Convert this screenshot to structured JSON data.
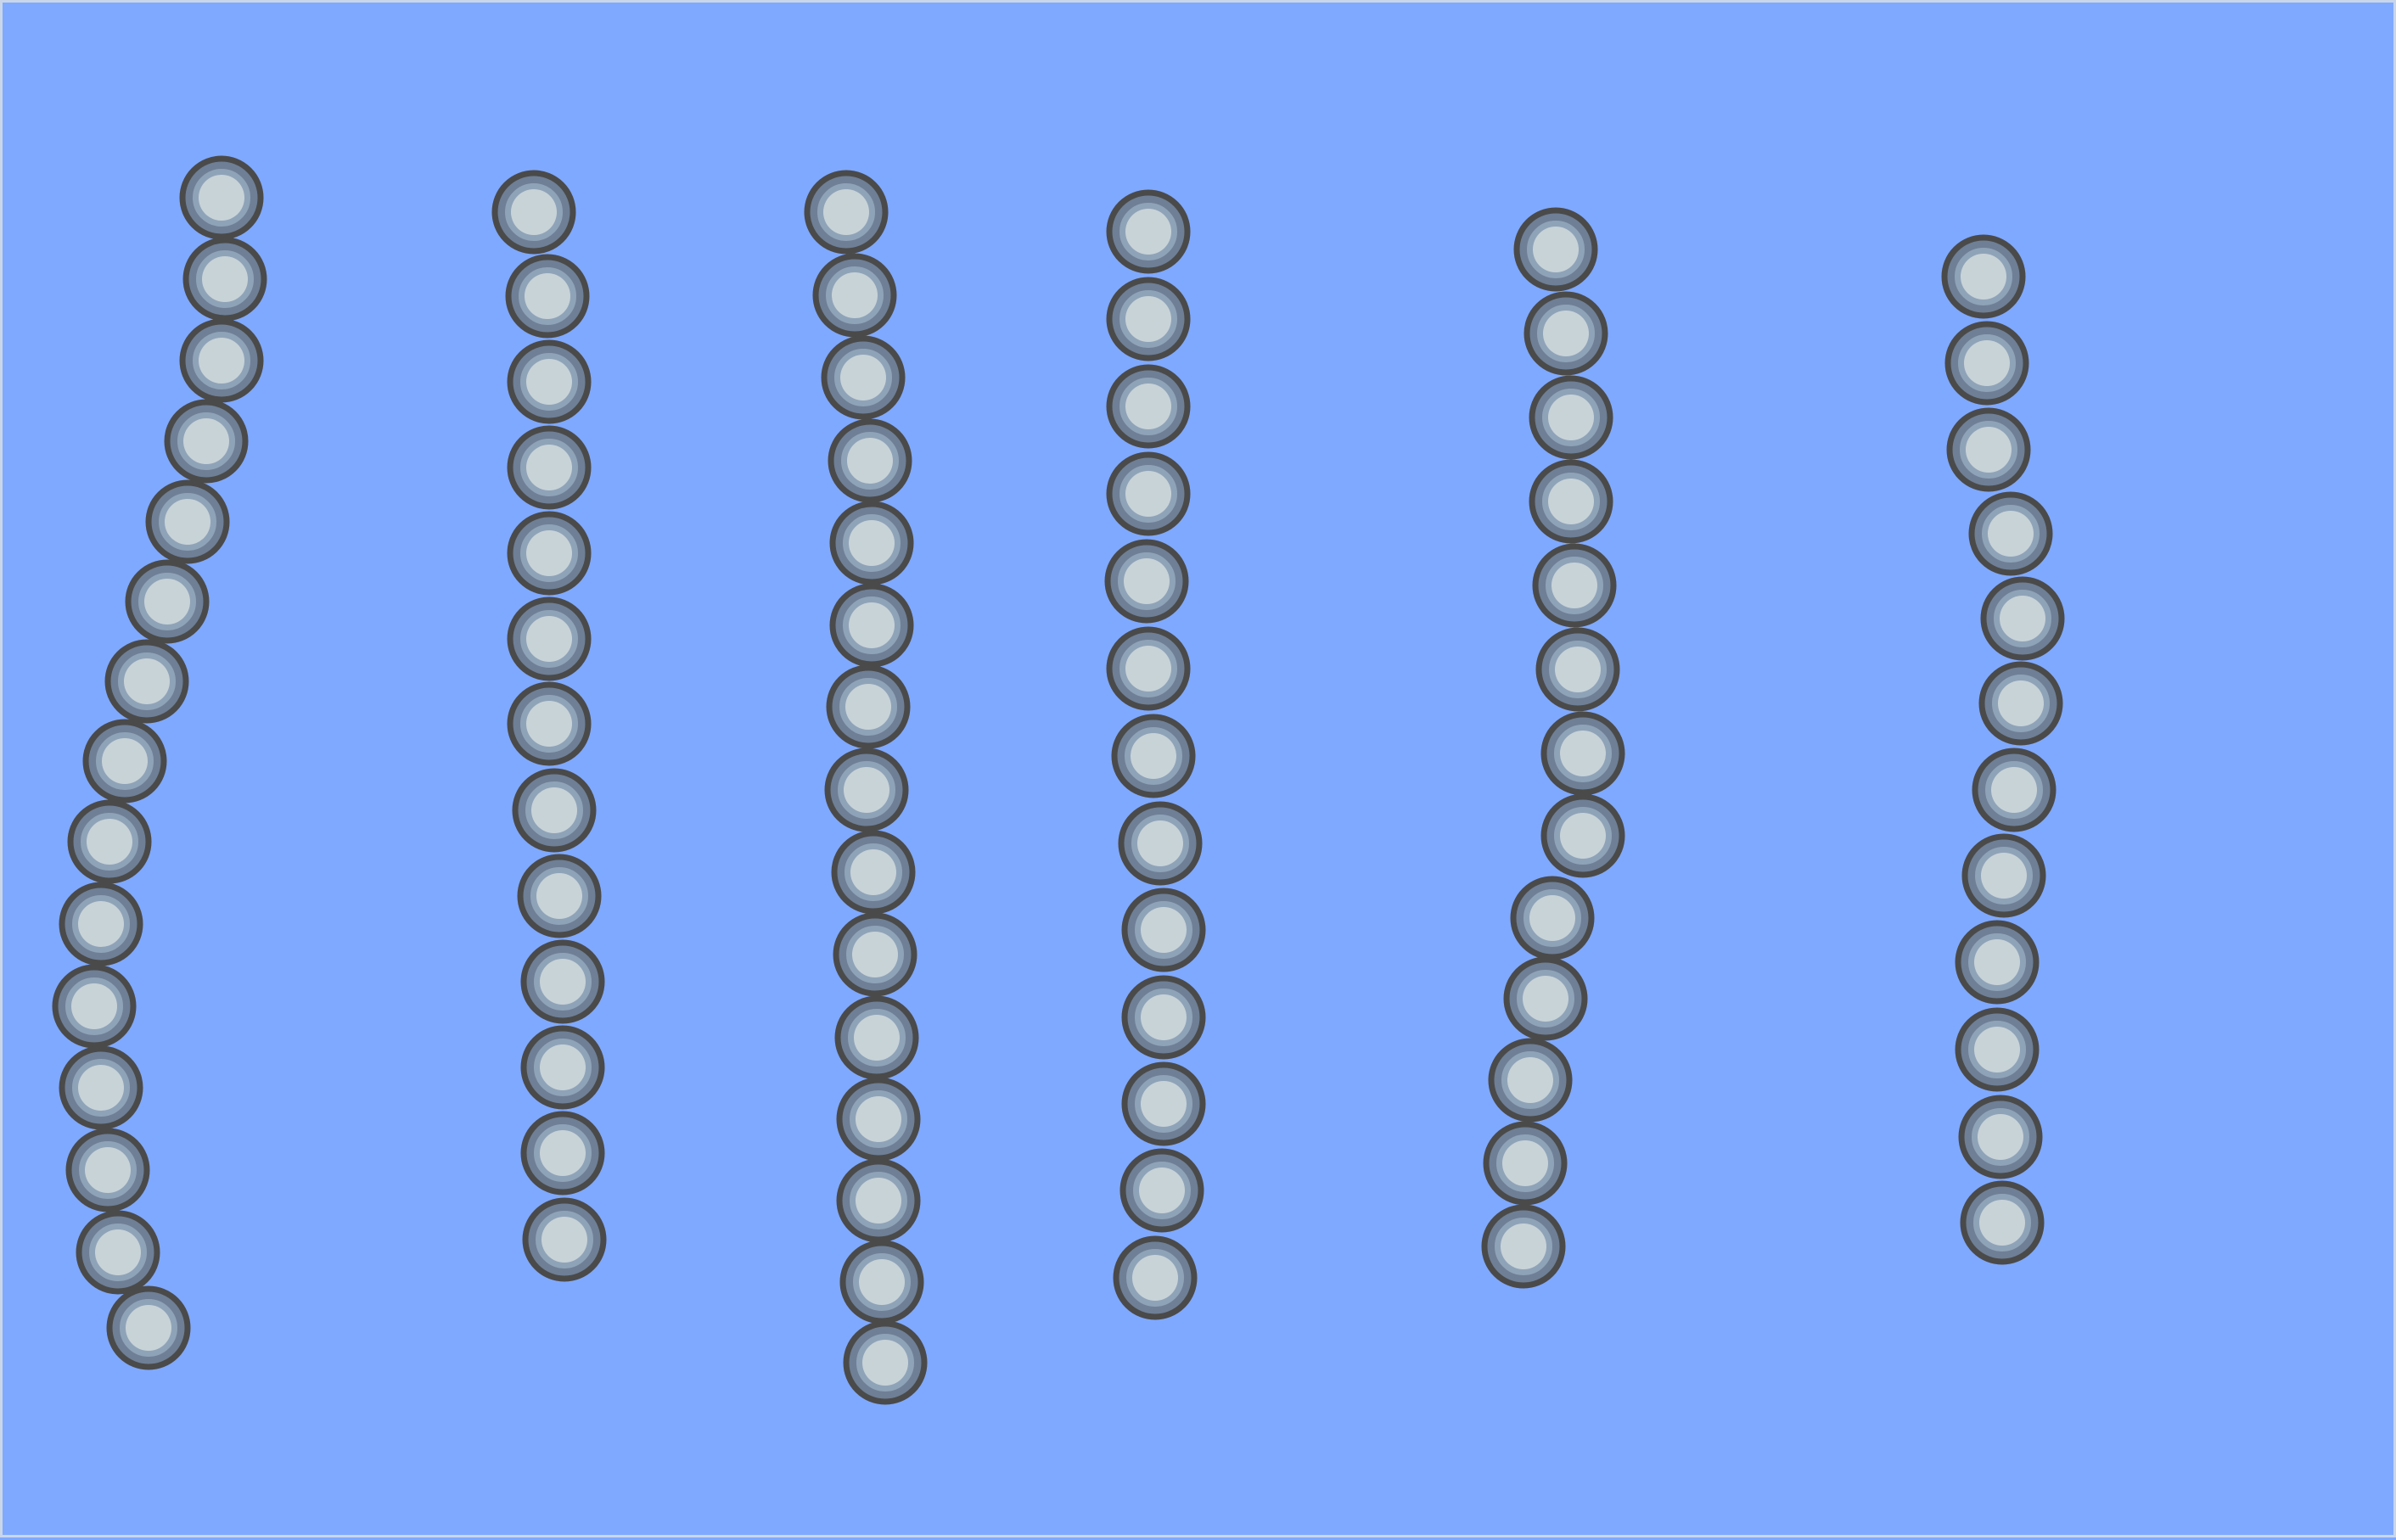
{
  "scene": {
    "description_type": "illustration",
    "colors": {
      "background": "#7fa9ff",
      "border": "#c9d6ea",
      "bead_outline": "#4a4a4a",
      "bead_ring_dark": "#6e7f96",
      "bead_ring_mid": "#8fa3b8",
      "bead_core": "#c8d3d8"
    },
    "chains": [
      {
        "name": "chain-1",
        "bead_count": 15
      },
      {
        "name": "chain-2",
        "bead_count": 13
      },
      {
        "name": "chain-3",
        "bead_count": 15
      },
      {
        "name": "chain-4",
        "bead_count": 13
      },
      {
        "name": "chain-5",
        "bead_count": 13
      },
      {
        "name": "chain-6",
        "bead_count": 12
      }
    ]
  }
}
